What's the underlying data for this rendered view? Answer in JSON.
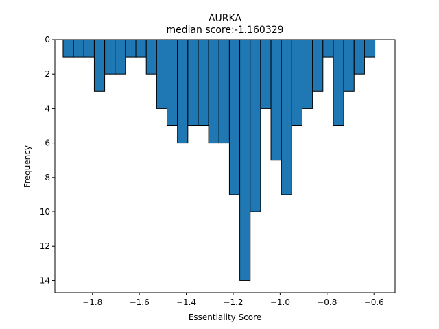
{
  "chart_data": {
    "type": "bar",
    "title": "AURKA",
    "subtitle": "median score:-1.160329",
    "xlabel": "Essentiality Score",
    "ylabel": "Frequency",
    "y_inverted": true,
    "xlim": [
      -1.96,
      -0.51
    ],
    "ylim": [
      0,
      14.7
    ],
    "bin_width": 0.0443,
    "bin_start": -1.925,
    "values": [
      1,
      1,
      1,
      3,
      2,
      2,
      1,
      1,
      2,
      4,
      5,
      6,
      5,
      5,
      6,
      6,
      9,
      14,
      10,
      4,
      7,
      9,
      5,
      4,
      3,
      1,
      5,
      3,
      2,
      1
    ],
    "xticks": [
      -1.8,
      -1.6,
      -1.4,
      -1.2,
      -1.0,
      -0.8,
      -0.6
    ],
    "xtick_labels": [
      "−1.8",
      "−1.6",
      "−1.4",
      "−1.2",
      "−1.0",
      "−0.8",
      "−0.6"
    ],
    "yticks": [
      0,
      2,
      4,
      6,
      8,
      10,
      12,
      14
    ],
    "ytick_labels": [
      "0",
      "2",
      "4",
      "6",
      "8",
      "10",
      "12",
      "14"
    ],
    "bar_color": "#1f77b4",
    "edge_color": "#000000",
    "grid": false,
    "legend": "none"
  }
}
